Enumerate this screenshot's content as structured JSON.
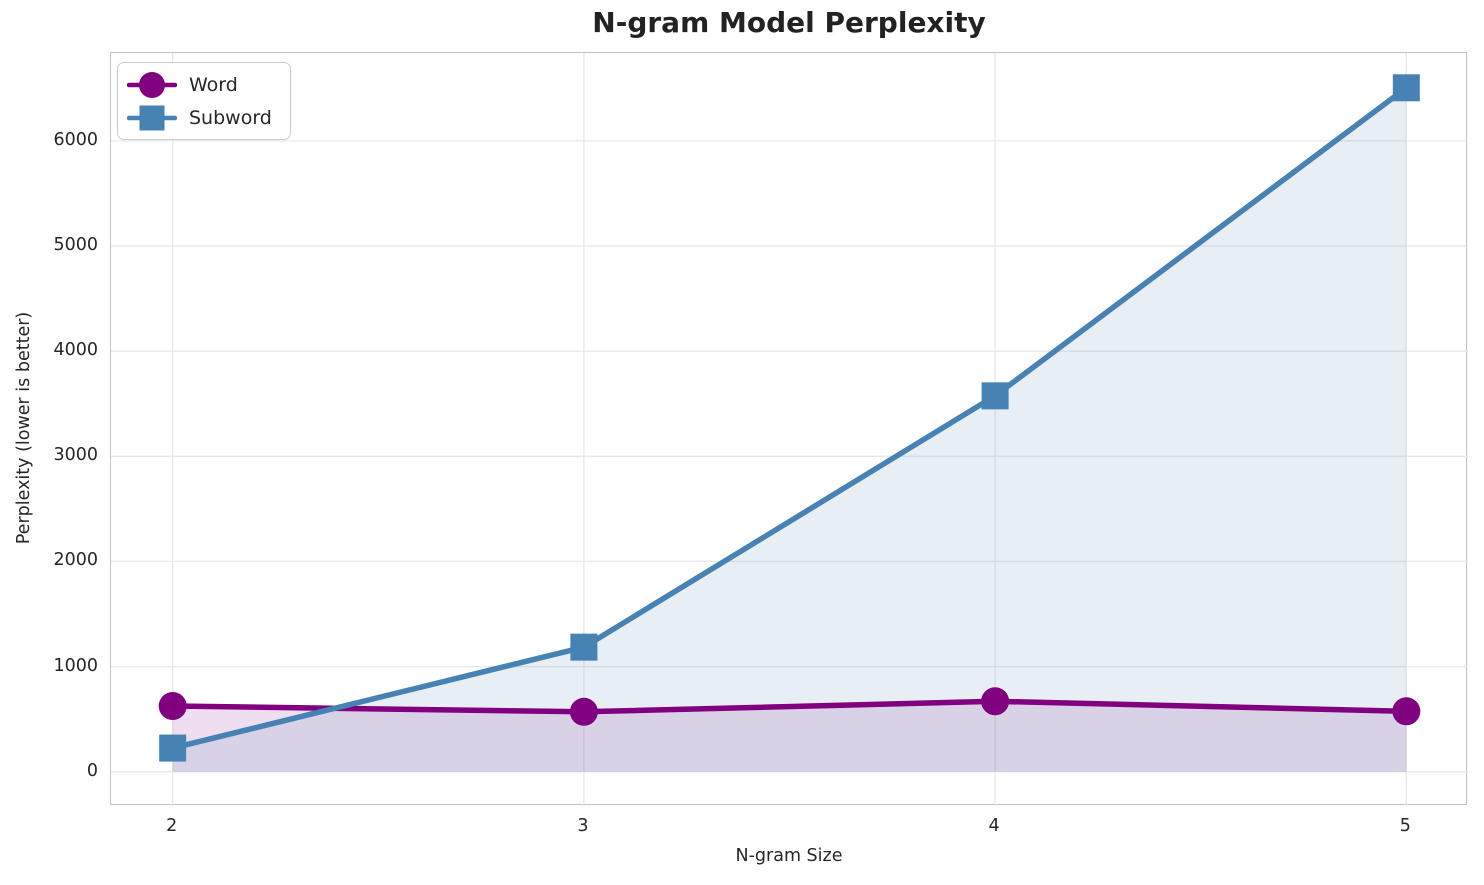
{
  "chart_data": {
    "type": "line",
    "title": "N-gram Model Perplexity",
    "xlabel": "N-gram Size",
    "ylabel": "Perplexity (lower is better)",
    "x": [
      2,
      3,
      4,
      5
    ],
    "series": [
      {
        "name": "Word",
        "marker": "circle",
        "color": "#800080",
        "values": [
          625,
          570,
          670,
          575
        ]
      },
      {
        "name": "Subword",
        "marker": "square",
        "color": "#4682B4",
        "values": [
          225,
          1185,
          3575,
          6505
        ]
      }
    ],
    "xticks": [
      2,
      3,
      4,
      5
    ],
    "yticks": [
      0,
      1000,
      2000,
      3000,
      4000,
      5000,
      6000
    ],
    "xlim": [
      1.85,
      5.15
    ],
    "ylim": [
      -326,
      6836
    ],
    "grid": true,
    "area_fill": true,
    "fill_opacity": 0.13,
    "legend_position": "upper-left"
  },
  "colors": {
    "grid": "#e8e8e8",
    "spine": "#c2c2c2",
    "text": "#262626",
    "title": "#222222",
    "background": "#ffffff"
  }
}
